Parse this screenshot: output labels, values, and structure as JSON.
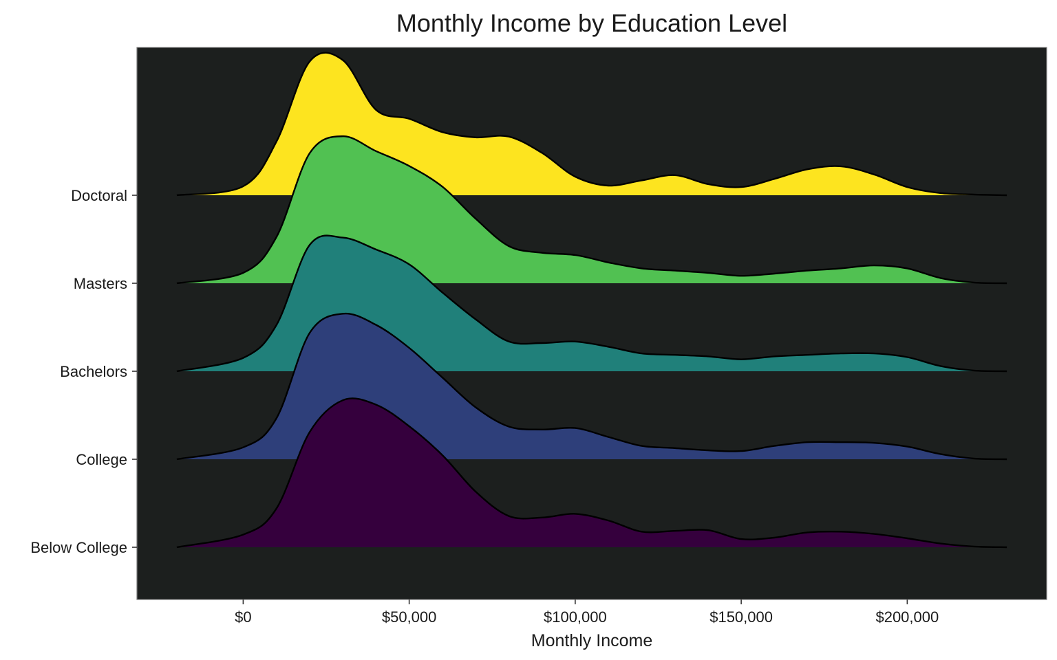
{
  "chart_data": {
    "type": "ridgeline",
    "title": "Monthly Income by Education Level",
    "xlabel": "Monthly Income",
    "ylabel": "",
    "xlim": [
      -32000,
      242000
    ],
    "x_ticks": [
      0,
      50000,
      100000,
      150000,
      200000
    ],
    "x_tick_labels": [
      "$0",
      "$50,000",
      "$100,000",
      "$150,000",
      "$200,000"
    ],
    "background": "#1c1f1e",
    "outline_color": "#000000",
    "density_x": [
      -20000,
      0,
      10000,
      20000,
      30000,
      40000,
      50000,
      60000,
      70000,
      80000,
      90000,
      100000,
      110000,
      120000,
      130000,
      140000,
      150000,
      160000,
      170000,
      180000,
      190000,
      200000,
      210000,
      220000,
      230000
    ],
    "series": [
      {
        "name": "Below College",
        "color": "#35003d",
        "density": [
          0.0,
          0.17,
          0.52,
          1.55,
          1.98,
          1.92,
          1.63,
          1.24,
          0.75,
          0.42,
          0.4,
          0.45,
          0.36,
          0.21,
          0.22,
          0.23,
          0.11,
          0.13,
          0.2,
          0.21,
          0.18,
          0.12,
          0.05,
          0.01,
          0.0
        ]
      },
      {
        "name": "College",
        "color": "#2e3f7a",
        "density": [
          0.0,
          0.16,
          0.55,
          1.7,
          1.96,
          1.81,
          1.5,
          1.1,
          0.7,
          0.44,
          0.4,
          0.42,
          0.3,
          0.18,
          0.15,
          0.12,
          0.11,
          0.18,
          0.23,
          0.23,
          0.22,
          0.17,
          0.07,
          0.01,
          0.0
        ]
      },
      {
        "name": "Bachelors",
        "color": "#20807a",
        "density": [
          0.0,
          0.18,
          0.62,
          1.7,
          1.8,
          1.64,
          1.44,
          1.06,
          0.7,
          0.4,
          0.38,
          0.4,
          0.33,
          0.24,
          0.22,
          0.2,
          0.16,
          0.2,
          0.22,
          0.24,
          0.24,
          0.19,
          0.07,
          0.01,
          0.0
        ]
      },
      {
        "name": "Masters",
        "color": "#51c152",
        "density": [
          0.0,
          0.14,
          0.62,
          1.75,
          1.98,
          1.78,
          1.58,
          1.3,
          0.87,
          0.5,
          0.41,
          0.38,
          0.28,
          0.2,
          0.17,
          0.14,
          0.1,
          0.13,
          0.17,
          0.2,
          0.24,
          0.2,
          0.07,
          0.01,
          0.0
        ]
      },
      {
        "name": "Doctoral",
        "color": "#fde41f",
        "density": [
          0.0,
          0.12,
          0.72,
          1.8,
          1.82,
          1.15,
          1.03,
          0.85,
          0.78,
          0.79,
          0.57,
          0.25,
          0.13,
          0.2,
          0.27,
          0.15,
          0.11,
          0.22,
          0.35,
          0.39,
          0.28,
          0.11,
          0.03,
          0.01,
          0.0
        ]
      }
    ]
  }
}
